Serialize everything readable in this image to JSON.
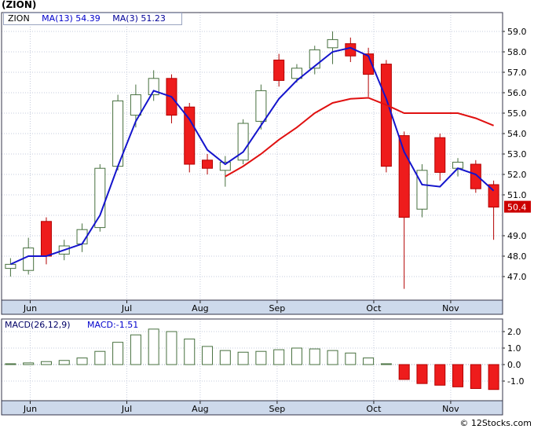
{
  "page": {
    "title": "(ZION)",
    "watermark": "© 12Stocks.com"
  },
  "main_legend": {
    "symbol": "ZION",
    "ma13": "MA(13) 54.39",
    "ma3": "MA(3) 51.23"
  },
  "macd_legend": {
    "params": "MACD(26,12,9)",
    "current": "MACD:-1.51"
  },
  "colors": {
    "up_fill": "#ffffff",
    "up_stroke": "#47703f",
    "down_fill": "#ee1c1c",
    "down_stroke": "#b30000",
    "wick_up": "#47703f",
    "wick_down": "#b30000",
    "ma_fast_line": "#1414cc",
    "ma_slow_line": "#e01010",
    "grid": "#c5cbdc",
    "border": "#34344a",
    "band_fill": "#cdd9eb",
    "price_label_bg": "#cc0000",
    "price_label_text": "#ffffff",
    "legend_symbol": "#000000",
    "legend_ma13": "#0000cc",
    "legend_ma3": "#000099",
    "macd_params_color": "#000066",
    "macd_value_color": "#0000cc",
    "axis_text": "#000000"
  },
  "chart_data": {
    "type": "candlestick",
    "symbol": "ZION",
    "title": "(ZION)",
    "timeframe": "weekly",
    "grid": true,
    "x_months": [
      {
        "label": "Jun",
        "pos": 1.1
      },
      {
        "label": "Jul",
        "pos": 6.5
      },
      {
        "label": "Aug",
        "pos": 10.6
      },
      {
        "label": "Sep",
        "pos": 14.9
      },
      {
        "label": "Oct",
        "pos": 20.3
      },
      {
        "label": "Nov",
        "pos": 24.6
      }
    ],
    "y_ticks": [
      59.0,
      58.0,
      57.0,
      56.0,
      55.0,
      54.0,
      53.0,
      52.0,
      51.0,
      50.0,
      49.0,
      48.0,
      47.0
    ],
    "y_tick_hidden": [
      50.0
    ],
    "y_range": [
      45.9,
      60.0
    ],
    "last_price": 50.4,
    "last_price_label": "50.4",
    "candles": [
      [
        47.4,
        47.9,
        47.0,
        47.6
      ],
      [
        47.3,
        48.9,
        47.1,
        48.4
      ],
      [
        49.7,
        49.9,
        47.6,
        48.0
      ],
      [
        48.1,
        48.8,
        47.8,
        48.5
      ],
      [
        48.6,
        49.6,
        48.2,
        49.3
      ],
      [
        49.4,
        52.5,
        49.2,
        52.3
      ],
      [
        52.4,
        55.9,
        52.2,
        55.6
      ],
      [
        54.9,
        56.4,
        54.3,
        55.9
      ],
      [
        55.9,
        57.1,
        55.6,
        56.7
      ],
      [
        56.7,
        56.9,
        54.5,
        54.9
      ],
      [
        55.3,
        55.5,
        52.1,
        52.5
      ],
      [
        52.7,
        53.0,
        52.0,
        52.3
      ],
      [
        52.2,
        52.9,
        51.4,
        52.6
      ],
      [
        52.7,
        54.7,
        52.5,
        54.5
      ],
      [
        54.6,
        56.4,
        54.2,
        56.1
      ],
      [
        57.6,
        57.9,
        56.3,
        56.6
      ],
      [
        56.7,
        57.4,
        56.5,
        57.2
      ],
      [
        57.2,
        58.3,
        56.9,
        58.1
      ],
      [
        58.2,
        59.0,
        57.4,
        58.6
      ],
      [
        58.4,
        58.7,
        57.5,
        57.8
      ],
      [
        57.9,
        58.2,
        55.8,
        56.9
      ],
      [
        57.4,
        57.6,
        52.1,
        52.4
      ],
      [
        53.9,
        54.1,
        46.4,
        49.9
      ],
      [
        50.3,
        52.5,
        49.9,
        52.2
      ],
      [
        53.8,
        54.0,
        51.7,
        52.1
      ],
      [
        52.3,
        52.8,
        51.9,
        52.6
      ],
      [
        52.5,
        52.7,
        51.1,
        51.3
      ],
      [
        51.5,
        51.7,
        48.8,
        50.4
      ]
    ],
    "series": [
      {
        "name": "MA(3)",
        "current": 51.23,
        "color_key": "ma_fast_line",
        "values": [
          47.6,
          48.0,
          48.0,
          48.3,
          48.6,
          50.0,
          52.4,
          54.6,
          56.1,
          55.8,
          54.7,
          53.2,
          52.5,
          53.1,
          54.4,
          55.7,
          56.6,
          57.3,
          58.0,
          58.2,
          57.8,
          55.7,
          53.1,
          51.5,
          51.4,
          52.3,
          52.0,
          51.2
        ]
      },
      {
        "name": "MA(13)",
        "current": 54.39,
        "color_key": "ma_slow_line",
        "values": [
          null,
          null,
          null,
          null,
          null,
          null,
          null,
          null,
          null,
          null,
          null,
          null,
          51.9,
          52.4,
          53.0,
          53.7,
          54.3,
          55.0,
          55.5,
          55.7,
          55.75,
          55.4,
          55.0,
          55.0,
          55.0,
          55.0,
          54.75,
          54.39
        ]
      }
    ],
    "macd": {
      "type": "bar",
      "label": "MACD(26,12,9)",
      "current": -1.51,
      "y_ticks": [
        2.0,
        1.0,
        0.0,
        -1.0
      ],
      "y_range": [
        -2.2,
        2.8
      ],
      "values": [
        0.05,
        0.1,
        0.18,
        0.25,
        0.4,
        0.8,
        1.35,
        1.8,
        2.15,
        2.0,
        1.55,
        1.1,
        0.85,
        0.75,
        0.8,
        0.9,
        1.0,
        0.95,
        0.85,
        0.7,
        0.4,
        0.05,
        -0.9,
        -1.15,
        -1.25,
        -1.35,
        -1.45,
        -1.51
      ]
    }
  }
}
